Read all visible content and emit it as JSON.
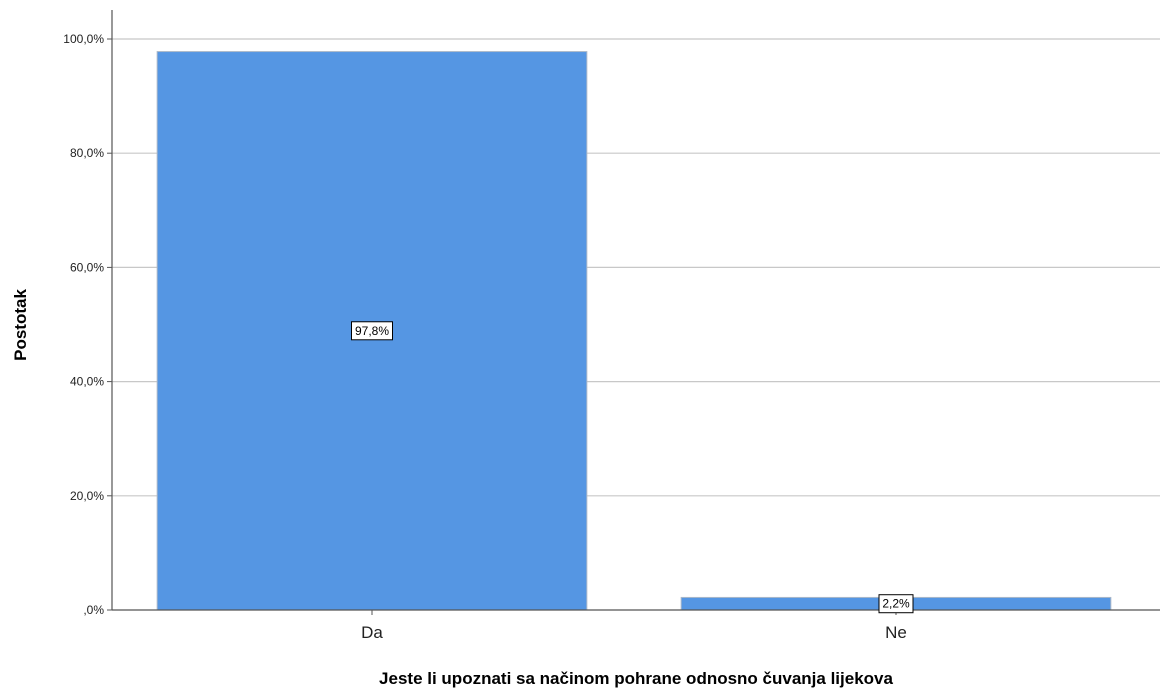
{
  "chart_data": {
    "type": "bar",
    "categories": [
      "Da",
      "Ne"
    ],
    "values": [
      97.8,
      2.2
    ],
    "data_labels": [
      "97,8%",
      "2,2%"
    ],
    "xlabel": "Jeste li upoznati sa načinom pohrane odnosno čuvanja lijekova",
    "ylabel": "Postotak",
    "ylim": [
      0,
      100
    ],
    "yticks": [
      0,
      20,
      40,
      60,
      80,
      100
    ],
    "ytick_labels": [
      ",0%",
      "20,0%",
      "40,0%",
      "60,0%",
      "80,0%",
      "100,0%"
    ],
    "grid": true,
    "legend": "none",
    "bar_color": "#5596e3",
    "bar_edge_color": "#aab8c8"
  }
}
